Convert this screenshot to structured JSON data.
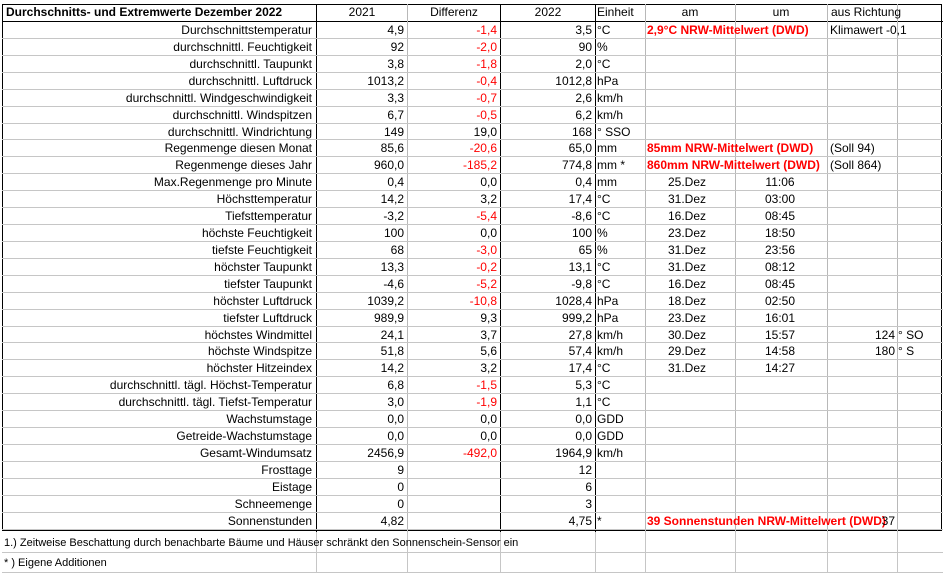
{
  "header": {
    "title": "Durchschnitts- und Extremwerte Dezember 2022",
    "col_2021": "2021",
    "col_diff": "Differenz",
    "col_2022": "2022",
    "col_unit": "Einheit",
    "col_am": "am",
    "col_um": "um",
    "col_dir": "aus Richtung"
  },
  "rows": [
    {
      "label": "Durchschnittstemperatur",
      "v2021": "4,9",
      "diff": "-1,4",
      "diff_red": true,
      "v2022": "3,5",
      "unit": "°C",
      "note": "2,9°C NRW-Mittelwert (DWD)",
      "note_style": "redb",
      "extra": "Klimawert -0,1"
    },
    {
      "label": "durchschnittl. Feuchtigkeit",
      "v2021": "92",
      "diff": "-2,0",
      "diff_red": true,
      "v2022": "90",
      "unit": "%"
    },
    {
      "label": "durchschnittl. Taupunkt",
      "v2021": "3,8",
      "diff": "-1,8",
      "diff_red": true,
      "v2022": "2,0",
      "unit": "°C"
    },
    {
      "label": "durchschnittl. Luftdruck",
      "v2021": "1013,2",
      "diff": "-0,4",
      "diff_red": true,
      "v2022": "1012,8",
      "unit": "hPa"
    },
    {
      "label": "durchschnittl. Windgeschwindigkeit",
      "v2021": "3,3",
      "diff": "-0,7",
      "diff_red": true,
      "v2022": "2,6",
      "unit": "km/h"
    },
    {
      "label": "durchschnittl. Windspitzen",
      "v2021": "6,7",
      "diff": "-0,5",
      "diff_red": true,
      "v2022": "6,2",
      "unit": "km/h"
    },
    {
      "label": "durchschnittl. Windrichtung",
      "v2021": "149",
      "diff": "19,0",
      "diff_red": false,
      "v2022": "168",
      "unit": "°  SSO"
    },
    {
      "label": "Regenmenge diesen Monat",
      "v2021": "85,6",
      "diff": "-20,6",
      "diff_red": true,
      "v2022": "65,0",
      "unit": "mm",
      "note": "85mm NRW-Mittelwert (DWD)",
      "note_style": "redb",
      "extra": "(Soll 94)"
    },
    {
      "label": "Regenmenge dieses Jahr",
      "v2021": "960,0",
      "diff": "-185,2",
      "diff_red": true,
      "v2022": "774,8",
      "unit": "mm *",
      "note": "860mm NRW-Mittelwert (DWD)",
      "note_style": "redb",
      "extra": "(Soll 864)"
    },
    {
      "label": "Max.Regenmenge pro Minute",
      "v2021": "0,4",
      "diff": "0,0",
      "diff_red": false,
      "v2022": "0,4",
      "unit": "mm",
      "am": "25.Dez",
      "um": "11:06"
    },
    {
      "label": "Höchsttemperatur",
      "v2021": "14,2",
      "diff": "3,2",
      "diff_red": false,
      "v2022": "17,4",
      "unit": "°C",
      "am": "31.Dez",
      "um": "03:00"
    },
    {
      "label": "Tiefsttemperatur",
      "v2021": "-3,2",
      "diff": "-5,4",
      "diff_red": true,
      "v2022": "-8,6",
      "unit": "°C",
      "am": "16.Dez",
      "um": "08:45"
    },
    {
      "label": "höchste Feuchtigkeit",
      "v2021": "100",
      "diff": "0,0",
      "diff_red": false,
      "v2022": "100",
      "unit": "%",
      "am": "23.Dez",
      "um": "18:50"
    },
    {
      "label": "tiefste Feuchtigkeit",
      "v2021": "68",
      "diff": "-3,0",
      "diff_red": true,
      "v2022": "65",
      "unit": "%",
      "am": "31.Dez",
      "um": "23:56"
    },
    {
      "label": "höchster Taupunkt",
      "v2021": "13,3",
      "diff": "-0,2",
      "diff_red": true,
      "v2022": "13,1",
      "unit": "°C",
      "am": "31.Dez",
      "um": "08:12"
    },
    {
      "label": "tiefster Taupunkt",
      "v2021": "-4,6",
      "diff": "-5,2",
      "diff_red": true,
      "v2022": "-9,8",
      "unit": "°C",
      "am": "16.Dez",
      "um": "08:45"
    },
    {
      "label": "höchster Luftdruck",
      "v2021": "1039,2",
      "diff": "-10,8",
      "diff_red": true,
      "v2022": "1028,4",
      "unit": "hPa",
      "am": "18.Dez",
      "um": "02:50"
    },
    {
      "label": "tiefster Luftdruck",
      "v2021": "989,9",
      "diff": "9,3",
      "diff_red": false,
      "v2022": "999,2",
      "unit": "hPa",
      "am": "23.Dez",
      "um": "16:01"
    },
    {
      "label": "höchstes Windmittel",
      "v2021": "24,1",
      "diff": "3,7",
      "diff_red": false,
      "v2022": "27,8",
      "unit": "km/h",
      "am": "30.Dez",
      "um": "15:57",
      "dir_val": "124",
      "dir_txt": "° SO"
    },
    {
      "label": "höchste Windspitze",
      "v2021": "51,8",
      "diff": "5,6",
      "diff_red": false,
      "v2022": "57,4",
      "unit": "km/h",
      "am": "29.Dez",
      "um": "14:58",
      "dir_val": "180",
      "dir_txt": "° S"
    },
    {
      "label": "höchster Hitzeindex",
      "v2021": "14,2",
      "diff": "3,2",
      "diff_red": false,
      "v2022": "17,4",
      "unit": "°C",
      "am": "31.Dez",
      "um": "14:27"
    },
    {
      "label": "durchschnittl. tägl. Höchst-Temperatur",
      "v2021": "6,8",
      "diff": "-1,5",
      "diff_red": true,
      "v2022": "5,3",
      "unit": "°C"
    },
    {
      "label": "durchschnittl. tägl. Tiefst-Temperatur",
      "v2021": "3,0",
      "diff": "-1,9",
      "diff_red": true,
      "v2022": "1,1",
      "unit": "°C"
    },
    {
      "label": "Wachstumstage",
      "v2021": "0,0",
      "diff": "0,0",
      "diff_red": false,
      "v2022": "0,0",
      "unit": "GDD"
    },
    {
      "label": "Getreide-Wachstumstage",
      "v2021": "0,0",
      "diff": "0,0",
      "diff_red": false,
      "v2022": "0,0",
      "unit": "GDD"
    },
    {
      "label": "Gesamt-Windumsatz",
      "v2021": "2456,9",
      "diff": "-492,0",
      "diff_red": true,
      "v2022": "1964,9",
      "unit": "km/h"
    },
    {
      "label": "Frosttage",
      "v2021": "9",
      "diff": "",
      "diff_red": false,
      "v2022": "12",
      "unit": ""
    },
    {
      "label": "Eistage",
      "v2021": "0",
      "diff": "",
      "diff_red": false,
      "v2022": "6",
      "unit": ""
    },
    {
      "label": "Schneemenge",
      "v2021": "0",
      "diff": "",
      "diff_red": false,
      "v2022": "3",
      "unit": ""
    },
    {
      "label": "Sonnenstunden",
      "v2021": "4,82",
      "diff": "",
      "diff_red": false,
      "v2022": "4,75",
      "unit": "*",
      "note": "39 Sonnenstunden NRW-Mittelwert (DWD)",
      "note_style": "redb",
      "dir_val": "37"
    }
  ],
  "footnotes": [
    "1.) Zeitweise Beschattung durch benachbarte Bäume und Häuser schränkt den Sonnenschein-Sensor ein",
    "* ) Eigene Additionen"
  ]
}
